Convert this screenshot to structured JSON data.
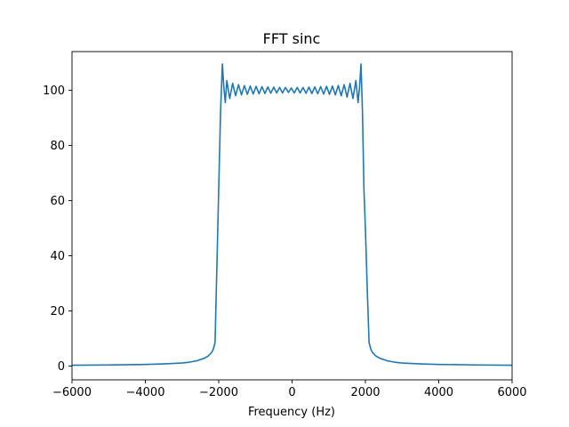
{
  "chart_data": {
    "type": "line",
    "title": "FFT sinc",
    "xlabel": "Frequency (Hz)",
    "ylabel": "",
    "xlim": [
      -6000,
      6000
    ],
    "ylim": [
      -5,
      114
    ],
    "xticks": [
      -6000,
      -4000,
      -2000,
      0,
      2000,
      4000,
      6000
    ],
    "xtick_labels": [
      "−6000",
      "−4000",
      "−2000",
      "0",
      "2000",
      "4000",
      "6000"
    ],
    "yticks": [
      0,
      20,
      40,
      60,
      80,
      100
    ],
    "ytick_labels": [
      "0",
      "20",
      "40",
      "60",
      "80",
      "100"
    ],
    "grid": false,
    "series": [
      {
        "color": "#1f77b4",
        "x": [
          -6000,
          -5000,
          -4000,
          -3500,
          -3000,
          -2800,
          -2600,
          -2400,
          -2300,
          -2200,
          -2150,
          -2100,
          -2050,
          -2000,
          -1950,
          -1900,
          -1860,
          -1820,
          -1780,
          -1700,
          -1620,
          -1540,
          -1460,
          -1380,
          -1300,
          -1220,
          -1140,
          -1060,
          -980,
          -900,
          -820,
          -740,
          -660,
          -580,
          -500,
          -420,
          -340,
          -260,
          -180,
          -100,
          -20,
          60,
          140,
          220,
          300,
          380,
          460,
          540,
          620,
          700,
          780,
          860,
          940,
          1020,
          1100,
          1180,
          1260,
          1340,
          1420,
          1500,
          1580,
          1660,
          1740,
          1800,
          1840,
          1880,
          1920,
          1960,
          2000,
          2050,
          2100,
          2150,
          2200,
          2300,
          2400,
          2600,
          2800,
          3000,
          3500,
          4000,
          5000,
          6000
        ],
        "y": [
          0.3,
          0.4,
          0.6,
          0.8,
          1.1,
          1.4,
          1.9,
          2.8,
          3.5,
          4.8,
          6.0,
          8.5,
          36,
          64,
          92,
          109.5,
          101,
          95.5,
          103.5,
          97,
          102.5,
          98,
          102,
          98.3,
          101.7,
          98.5,
          101.5,
          98.6,
          101.4,
          98.7,
          101.3,
          98.8,
          101.2,
          98.9,
          101.1,
          99,
          101,
          99,
          101,
          99.2,
          100.8,
          99,
          101,
          99,
          101,
          98.9,
          101.1,
          98.8,
          101.2,
          98.7,
          101.3,
          98.6,
          101.4,
          98.5,
          101.5,
          98.3,
          101.7,
          98,
          102,
          97.5,
          102.5,
          97,
          103.5,
          95.5,
          101,
          109.5,
          92,
          64,
          50,
          28,
          8.5,
          6.0,
          4.8,
          3.5,
          2.8,
          1.9,
          1.4,
          1.1,
          0.8,
          0.6,
          0.4,
          0.3
        ]
      }
    ]
  }
}
